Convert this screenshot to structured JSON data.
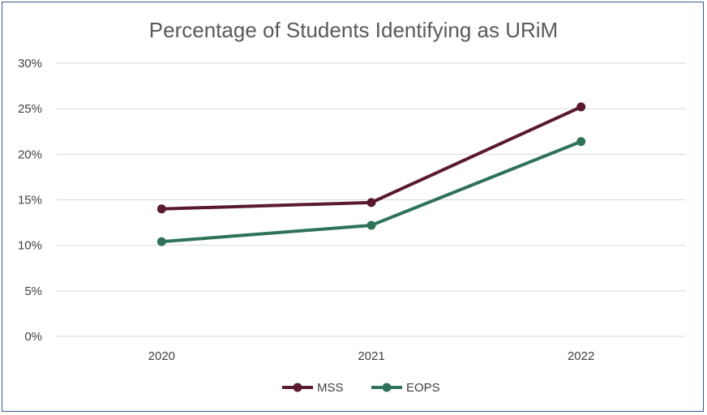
{
  "chart_data": {
    "type": "line",
    "title": "Percentage of Students Identifying as URiM",
    "categories": [
      "2020",
      "2021",
      "2022"
    ],
    "series": [
      {
        "name": "MSS",
        "values": [
          14.0,
          14.7,
          25.2
        ],
        "color": "#5a1a2e"
      },
      {
        "name": "EOPS",
        "values": [
          10.4,
          12.2,
          21.4
        ],
        "color": "#2e7358"
      }
    ],
    "y_ticks": [
      "0%",
      "5%",
      "10%",
      "15%",
      "20%",
      "25%",
      "30%"
    ],
    "ylim": [
      0,
      30
    ],
    "xlabel": "",
    "ylabel": "",
    "grid": true,
    "legend_position": "bottom"
  }
}
